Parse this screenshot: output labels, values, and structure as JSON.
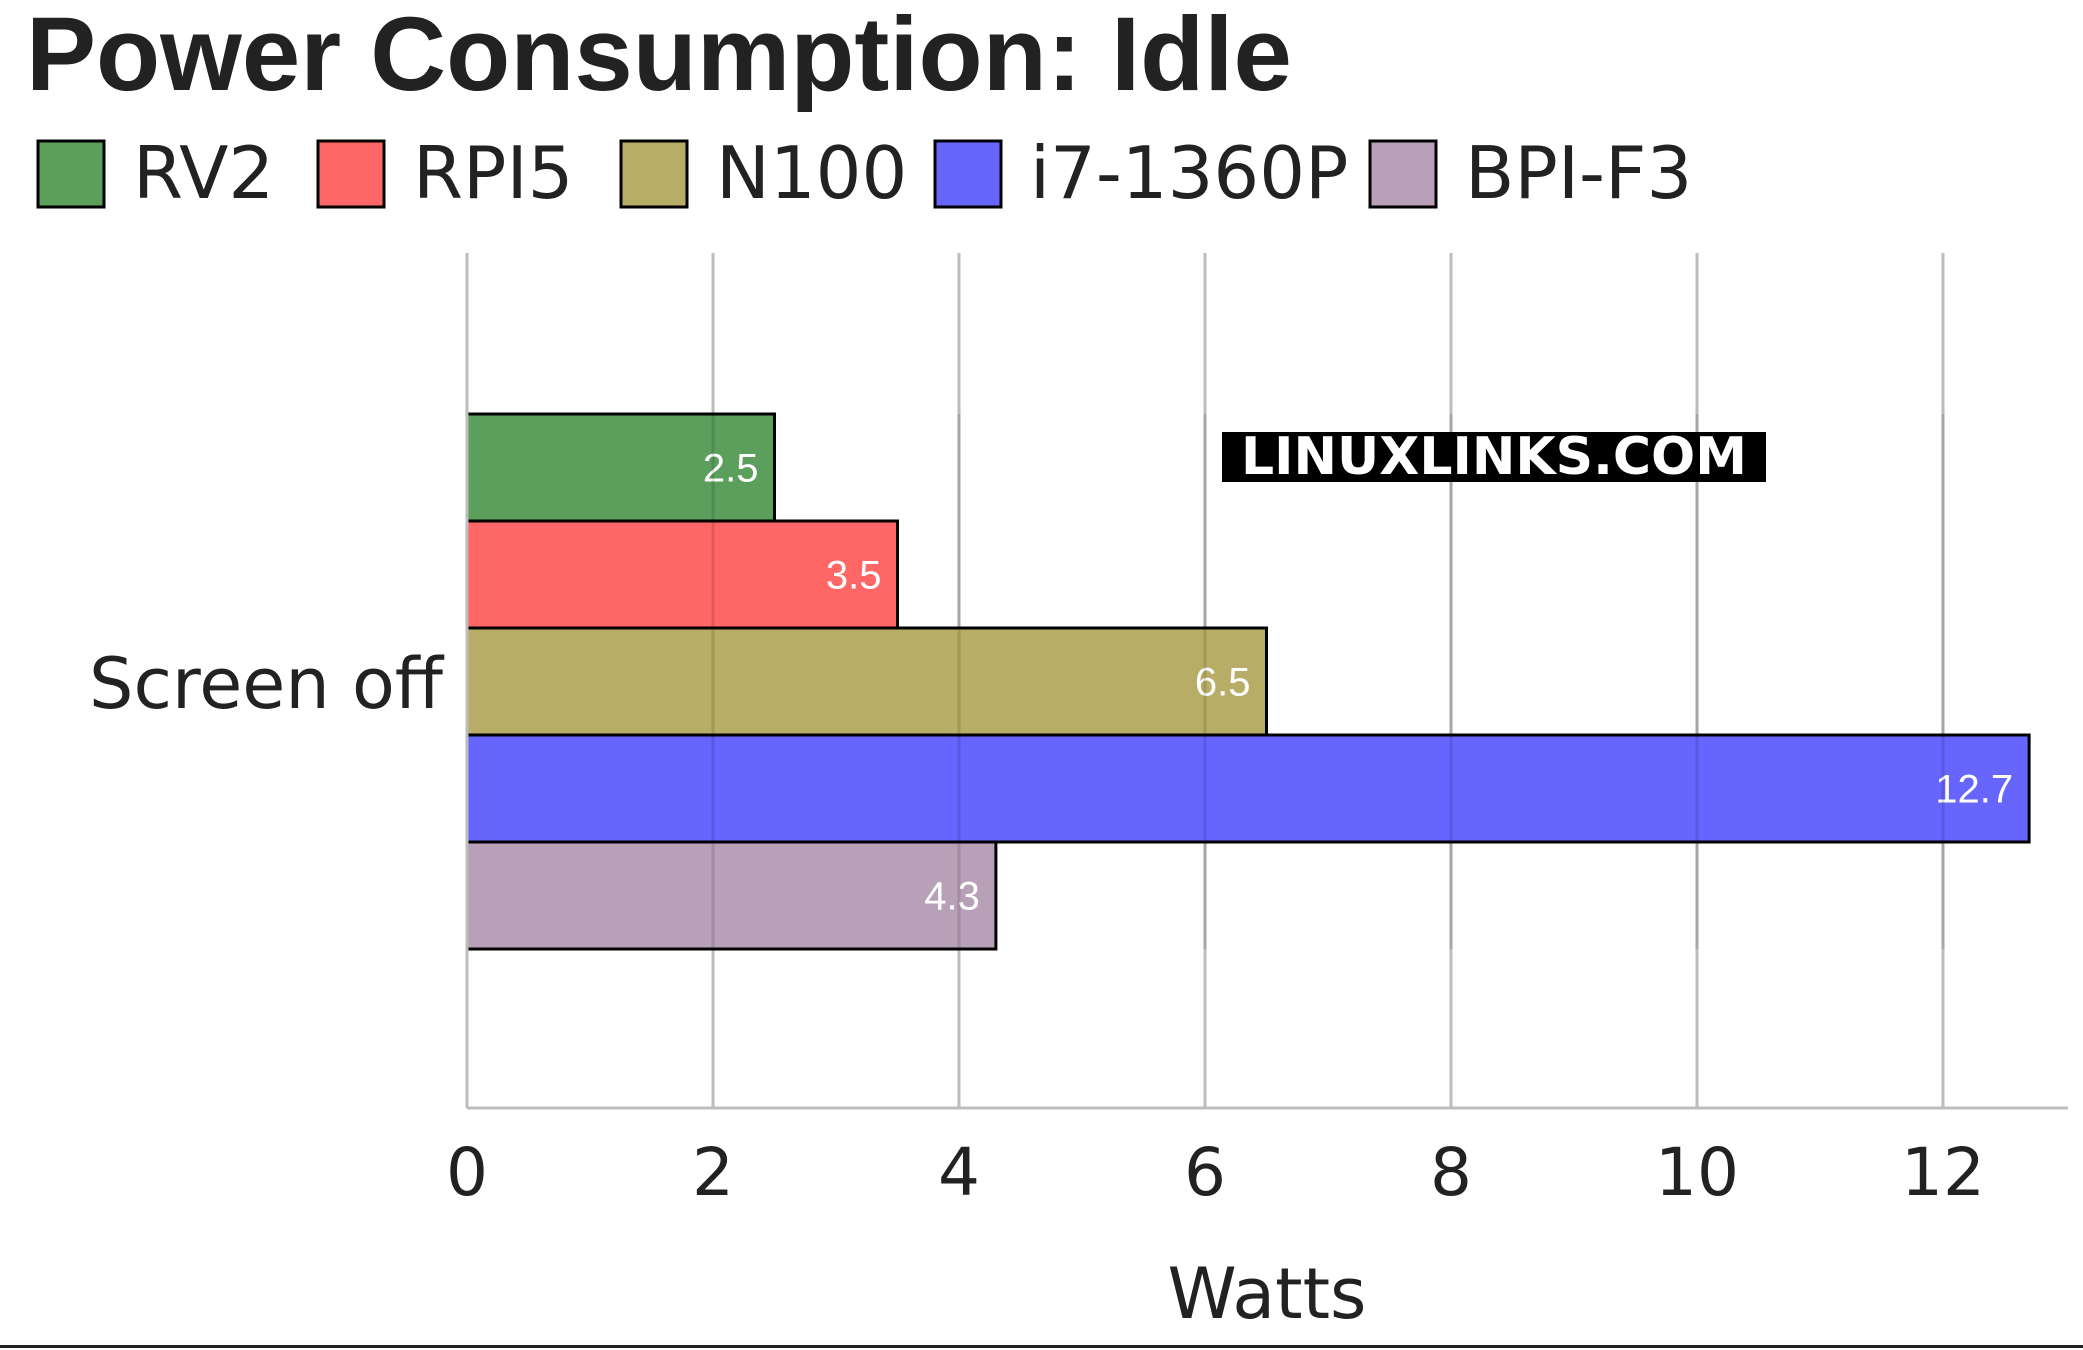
{
  "chart_data": {
    "type": "bar",
    "orientation": "horizontal",
    "title": "Power Consumption: Idle",
    "categories": [
      "Screen off"
    ],
    "series": [
      {
        "name": "RV2",
        "values": [
          2.5
        ],
        "color": "#5c9e5c"
      },
      {
        "name": "RPI5",
        "values": [
          3.5
        ],
        "color": "#ff6666"
      },
      {
        "name": "N100",
        "values": [
          6.5
        ],
        "color": "#b8ad66"
      },
      {
        "name": "i7-1360P",
        "values": [
          12.7
        ],
        "color": "#6666ff"
      },
      {
        "name": "BPI-F3",
        "values": [
          4.3
        ],
        "color": "#b8a0b8"
      }
    ],
    "data_labels": [
      "2.5",
      "3.5",
      "6.5",
      "12.7",
      "4.3"
    ],
    "xlabel": "Watts",
    "ylabel": "",
    "xlim": [
      0,
      13
    ],
    "xticks": [
      "0",
      "2",
      "4",
      "6",
      "8",
      "10",
      "12"
    ],
    "grid": "vertical",
    "legend_position": "top-left"
  },
  "watermark": "LINUXLINKS.COM"
}
